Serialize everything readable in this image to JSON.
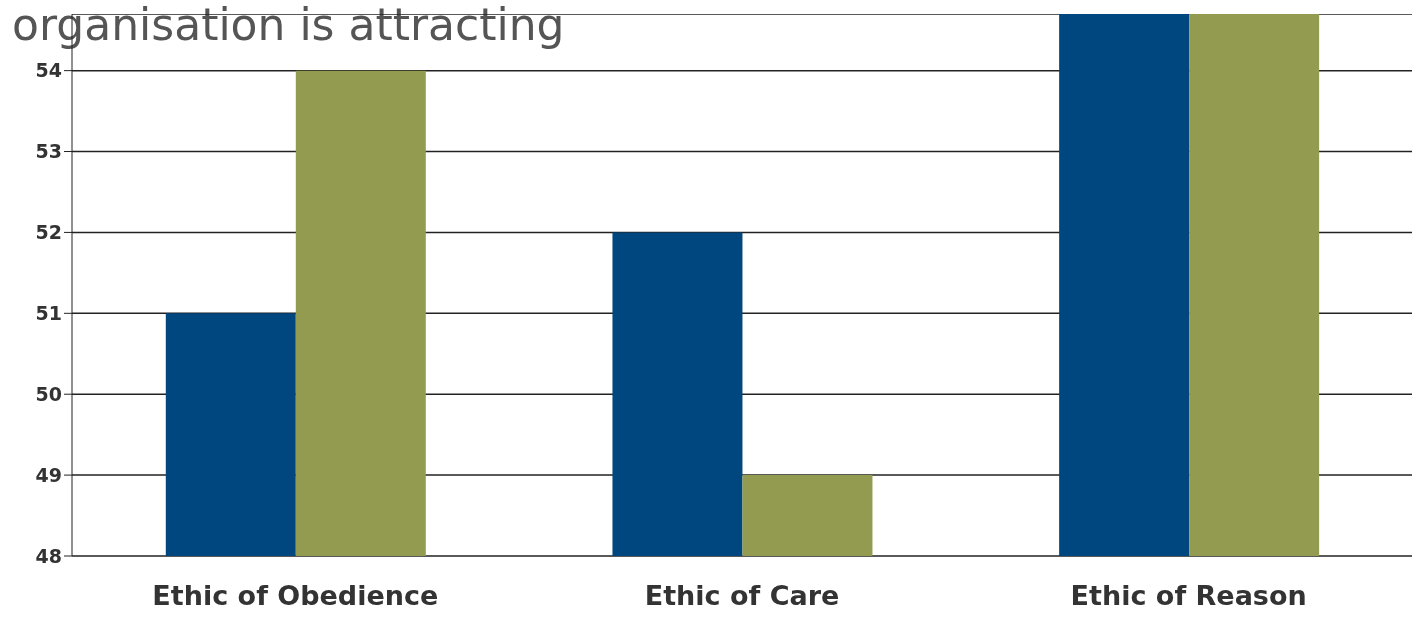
{
  "chart_data": {
    "type": "bar",
    "title": "organisation is attracting",
    "categories": [
      "Ethic of Obedience",
      "Ethic of Care",
      "Ethic of Reason"
    ],
    "series": [
      {
        "color": "#00467f",
        "values": [
          51,
          52,
          54.7
        ]
      },
      {
        "color": "#929b4f",
        "values": [
          54,
          49,
          54.7
        ]
      }
    ],
    "ylim": [
      48,
      54.7
    ],
    "yticks": [
      48,
      49,
      50,
      51,
      52,
      53,
      54
    ],
    "grid": "y",
    "legend": false
  }
}
